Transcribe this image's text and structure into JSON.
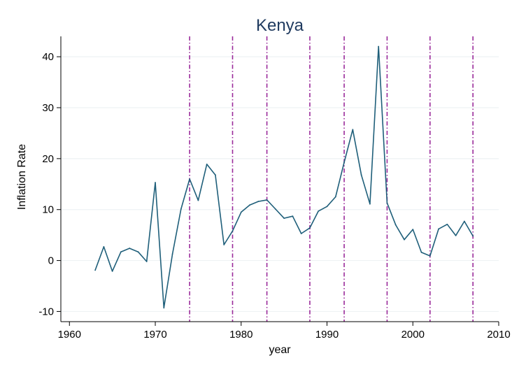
{
  "chart_data": {
    "type": "line",
    "title": "Kenya",
    "xlabel": "year",
    "ylabel": "Inflation Rate",
    "xlim": [
      1959,
      2010
    ],
    "ylim": [
      -12,
      44
    ],
    "x_ticks": [
      1960,
      1970,
      1980,
      1990,
      2000,
      2010
    ],
    "y_ticks": [
      -10,
      0,
      10,
      20,
      30,
      40
    ],
    "grid": "horizontal",
    "colors": {
      "line": "#1f5f7a",
      "vlines": "#9a2a9a",
      "grid": "#eef2f4",
      "title": "#1f3a5f"
    },
    "vertical_reference_lines": [
      1974,
      1979,
      1983,
      1988,
      1992,
      1997,
      2002,
      2007
    ],
    "series": [
      {
        "x": [
          1963,
          1964,
          1965,
          1966,
          1967,
          1968,
          1969,
          1970,
          1971,
          1972,
          1973,
          1974,
          1975,
          1976,
          1977,
          1978,
          1979,
          1980,
          1981,
          1982,
          1983,
          1984,
          1985,
          1986,
          1987,
          1988,
          1989,
          1990,
          1991,
          1992,
          1993,
          1994,
          1995,
          1996,
          1997,
          1998,
          1999,
          2000,
          2001,
          2002,
          2003,
          2004,
          2005,
          2006,
          2007
        ],
        "values": [
          -1.9,
          2.7,
          -2.1,
          1.7,
          2.4,
          1.7,
          -0.2,
          15.3,
          -9.3,
          1.3,
          10.1,
          16.0,
          11.8,
          18.9,
          16.8,
          3.1,
          5.8,
          9.5,
          10.9,
          11.6,
          11.9,
          10.1,
          8.3,
          8.7,
          5.3,
          6.4,
          9.7,
          10.6,
          12.5,
          19.3,
          25.7,
          16.8,
          11.1,
          42.0,
          11.3,
          7.0,
          4.1,
          6.1,
          1.6,
          0.9,
          6.2,
          7.1,
          4.9,
          7.7,
          4.8
        ]
      }
    ]
  }
}
